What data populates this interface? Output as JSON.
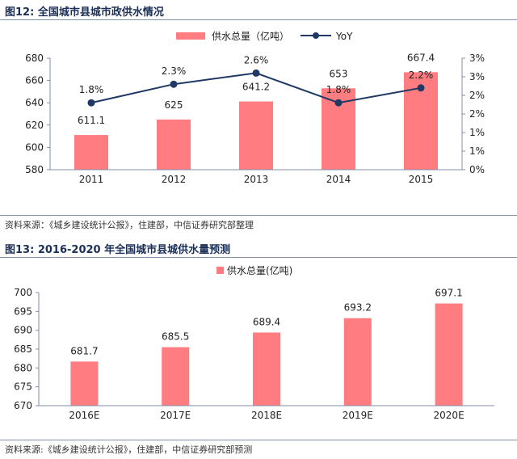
{
  "figures": [
    {
      "title": "图12: 全国城市县城市政供水情况",
      "source": "资料来源：《城乡建设统计公报》，住建部，中信证券研究部整理"
    },
    {
      "title": "图13: 2016-2020 年全国城市县城供水量预测",
      "source": "资料来源:《城乡建设统计公报》，住建部，中信证券研究部预测"
    }
  ],
  "colors": {
    "bar": "#ff7c80",
    "line": "#1f3864",
    "title": "#1b2f57",
    "axis": "#7f8fa8"
  },
  "chart_data": [
    {
      "type": "bar",
      "title": "图12: 全国城市县城市政供水情况",
      "categories": [
        "2011",
        "2012",
        "2013",
        "2014",
        "2015"
      ],
      "series": [
        {
          "name": "供水总量（亿吨）",
          "type": "bar",
          "axis": "left",
          "values": [
            611.1,
            625,
            641.2,
            653,
            667.4
          ],
          "labels": [
            "611.1",
            "625",
            "641.2",
            "653",
            "667.4"
          ]
        },
        {
          "name": "YoY",
          "type": "line",
          "axis": "right",
          "values": [
            1.8,
            2.3,
            2.6,
            1.8,
            2.2
          ],
          "labels": [
            "1.8%",
            "2.3%",
            "2.6%",
            "1.8%",
            "2.2%"
          ]
        }
      ],
      "ylim": [
        580,
        680
      ],
      "yticks": [
        "580",
        "600",
        "620",
        "640",
        "660",
        "680"
      ],
      "y2lim": [
        0,
        3
      ],
      "y2ticks": [
        "0%",
        "1%",
        "1%",
        "2%",
        "2%",
        "3%",
        "3%"
      ],
      "legend_position": "top-center"
    },
    {
      "type": "bar",
      "title": "图13: 2016-2020 年全国城市县城供水量预测",
      "categories": [
        "2016E",
        "2017E",
        "2018E",
        "2019E",
        "2020E"
      ],
      "series": [
        {
          "name": "供水总量(亿吨)",
          "type": "bar",
          "values": [
            681.7,
            685.5,
            689.4,
            693.2,
            697.1
          ],
          "labels": [
            "681.7",
            "685.5",
            "689.4",
            "693.2",
            "697.1"
          ]
        }
      ],
      "ylim": [
        670,
        700
      ],
      "yticks": [
        "670",
        "675",
        "680",
        "685",
        "690",
        "695",
        "700"
      ],
      "legend_position": "top-center"
    }
  ]
}
